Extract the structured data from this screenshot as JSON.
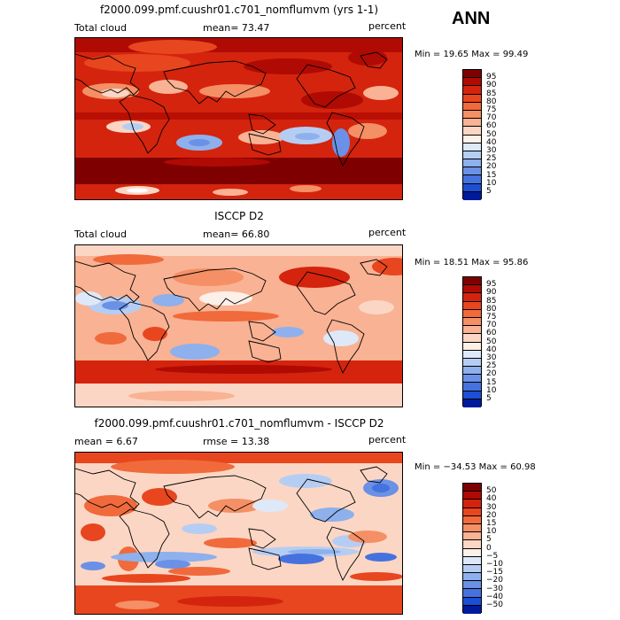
{
  "season": "ANN",
  "panels": [
    {
      "title": "f2000.099.pmf.cuushr01.c701_nomflumvm (yrs 1-1)",
      "left_label": "Total cloud",
      "stat1": "mean=  73.47",
      "stat2": "",
      "units": "percent",
      "minmax": "Min =  19.65 Max =  99.49"
    },
    {
      "title": "ISCCP D2",
      "left_label": "Total cloud",
      "stat1": "mean=  66.80",
      "stat2": "",
      "units": "percent",
      "minmax": "Min =  18.51 Max =  95.86"
    },
    {
      "title": "f2000.099.pmf.cuushr01.c701_nomflumvm - ISCCP D2",
      "left_label": "",
      "stat1": "mean =   6.67",
      "stat2": "rmse =  13.38",
      "units": "percent",
      "minmax": "Min = −34.53 Max =  60.98"
    }
  ],
  "colorbars": {
    "abs_levels": [
      "95",
      "90",
      "85",
      "80",
      "75",
      "70",
      "60",
      "50",
      "40",
      "30",
      "25",
      "20",
      "15",
      "10",
      "5"
    ],
    "abs_colors": [
      "#7f0000",
      "#b00a04",
      "#d4240e",
      "#e8461f",
      "#f06a3c",
      "#f58f65",
      "#f9b293",
      "#fcd6c4",
      "#fdf0e8",
      "#dde8f8",
      "#b6cdf3",
      "#8eb0ec",
      "#6a91e6",
      "#4572df",
      "#1c4fd6",
      "#001a9c"
    ],
    "diff_levels": [
      "50",
      "40",
      "30",
      "20",
      "15",
      "10",
      "5",
      "0",
      "−5",
      "−10",
      "−15",
      "−20",
      "−30",
      "−40",
      "−50"
    ],
    "diff_colors": [
      "#7f0000",
      "#b00a04",
      "#d4240e",
      "#e8461f",
      "#f06a3c",
      "#f58f65",
      "#f9b293",
      "#fcd6c4",
      "#fdf0e8",
      "#dde8f8",
      "#b6cdf3",
      "#8eb0ec",
      "#6a91e6",
      "#4572df",
      "#1c4fd6",
      "#001a9c"
    ]
  },
  "chart_data": [
    {
      "type": "heatmap",
      "title": "f2000.099.pmf.cuushr01.c701_nomflumvm (yrs 1-1)",
      "variable": "Total cloud",
      "units": "percent",
      "mean": 73.47,
      "min": 19.65,
      "max": 99.49,
      "levels": [
        5,
        10,
        15,
        20,
        25,
        30,
        40,
        50,
        60,
        70,
        75,
        80,
        85,
        90,
        95
      ]
    },
    {
      "type": "heatmap",
      "title": "ISCCP D2",
      "variable": "Total cloud",
      "units": "percent",
      "mean": 66.8,
      "min": 18.51,
      "max": 95.86,
      "levels": [
        5,
        10,
        15,
        20,
        25,
        30,
        40,
        50,
        60,
        70,
        75,
        80,
        85,
        90,
        95
      ]
    },
    {
      "type": "heatmap",
      "title": "f2000.099.pmf.cuushr01.c701_nomflumvm - ISCCP D2",
      "units": "percent",
      "mean": 6.67,
      "rmse": 13.38,
      "min": -34.53,
      "max": 60.98,
      "levels": [
        -50,
        -40,
        -30,
        -20,
        -15,
        -10,
        -5,
        0,
        5,
        10,
        15,
        20,
        30,
        40,
        50
      ]
    }
  ]
}
